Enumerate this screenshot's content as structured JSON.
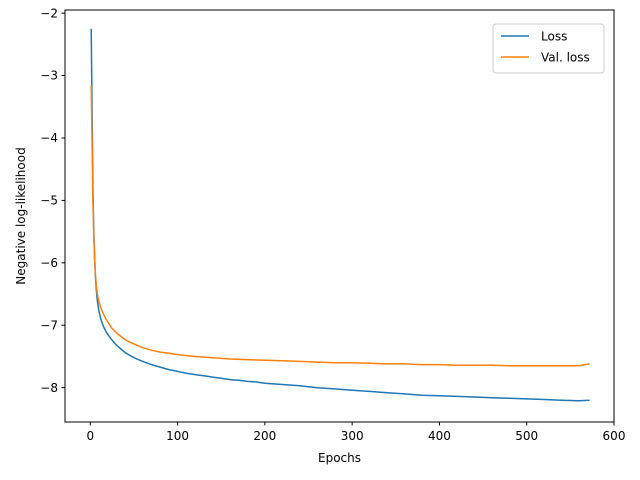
{
  "chart_data": {
    "type": "line",
    "title": "",
    "xlabel": "Epochs",
    "ylabel": "Negative log-likelihood",
    "xlim": [
      -29,
      600
    ],
    "ylim": [
      -8.55,
      -1.95
    ],
    "xticks": [
      0,
      100,
      200,
      300,
      400,
      500,
      600
    ],
    "xtick_labels": [
      "0",
      "100",
      "200",
      "300",
      "400",
      "500",
      "600"
    ],
    "yticks": [
      -8,
      -7,
      -6,
      -5,
      -4,
      -3,
      -2
    ],
    "ytick_labels": [
      "−8",
      "−7",
      "−6",
      "−5",
      "−4",
      "−3",
      "−2"
    ],
    "grid": false,
    "legend_position": "top-right",
    "series": [
      {
        "name": "Loss",
        "color": "#1f77b4",
        "points": [
          [
            1,
            -2.25
          ],
          [
            2,
            -3.6
          ],
          [
            3,
            -4.8
          ],
          [
            4,
            -5.5
          ],
          [
            5,
            -5.95
          ],
          [
            6,
            -6.25
          ],
          [
            7,
            -6.45
          ],
          [
            8,
            -6.6
          ],
          [
            10,
            -6.78
          ],
          [
            12,
            -6.9
          ],
          [
            15,
            -7.02
          ],
          [
            18,
            -7.1
          ],
          [
            20,
            -7.15
          ],
          [
            25,
            -7.24
          ],
          [
            30,
            -7.32
          ],
          [
            35,
            -7.38
          ],
          [
            40,
            -7.44
          ],
          [
            45,
            -7.48
          ],
          [
            50,
            -7.52
          ],
          [
            55,
            -7.55
          ],
          [
            60,
            -7.58
          ],
          [
            70,
            -7.63
          ],
          [
            80,
            -7.67
          ],
          [
            90,
            -7.71
          ],
          [
            100,
            -7.74
          ],
          [
            110,
            -7.77
          ],
          [
            120,
            -7.79
          ],
          [
            130,
            -7.81
          ],
          [
            140,
            -7.83
          ],
          [
            150,
            -7.85
          ],
          [
            160,
            -7.87
          ],
          [
            170,
            -7.88
          ],
          [
            180,
            -7.9
          ],
          [
            190,
            -7.91
          ],
          [
            200,
            -7.93
          ],
          [
            220,
            -7.95
          ],
          [
            240,
            -7.97
          ],
          [
            260,
            -8.0
          ],
          [
            280,
            -8.02
          ],
          [
            300,
            -8.04
          ],
          [
            320,
            -8.06
          ],
          [
            340,
            -8.08
          ],
          [
            360,
            -8.1
          ],
          [
            380,
            -8.12
          ],
          [
            400,
            -8.13
          ],
          [
            420,
            -8.14
          ],
          [
            440,
            -8.15
          ],
          [
            460,
            -8.16
          ],
          [
            480,
            -8.17
          ],
          [
            500,
            -8.18
          ],
          [
            520,
            -8.19
          ],
          [
            540,
            -8.2
          ],
          [
            560,
            -8.21
          ],
          [
            572,
            -8.2
          ]
        ]
      },
      {
        "name": "Val. loss",
        "color": "#ff7f0e",
        "points": [
          [
            1,
            -3.15
          ],
          [
            2,
            -4.1
          ],
          [
            3,
            -5.0
          ],
          [
            4,
            -5.6
          ],
          [
            5,
            -5.95
          ],
          [
            6,
            -6.2
          ],
          [
            7,
            -6.38
          ],
          [
            8,
            -6.5
          ],
          [
            10,
            -6.62
          ],
          [
            12,
            -6.72
          ],
          [
            15,
            -6.82
          ],
          [
            18,
            -6.9
          ],
          [
            20,
            -6.95
          ],
          [
            25,
            -7.05
          ],
          [
            30,
            -7.12
          ],
          [
            35,
            -7.18
          ],
          [
            40,
            -7.23
          ],
          [
            45,
            -7.27
          ],
          [
            50,
            -7.3
          ],
          [
            55,
            -7.33
          ],
          [
            60,
            -7.36
          ],
          [
            70,
            -7.4
          ],
          [
            80,
            -7.43
          ],
          [
            90,
            -7.45
          ],
          [
            100,
            -7.47
          ],
          [
            120,
            -7.5
          ],
          [
            140,
            -7.52
          ],
          [
            160,
            -7.54
          ],
          [
            180,
            -7.55
          ],
          [
            200,
            -7.56
          ],
          [
            220,
            -7.57
          ],
          [
            240,
            -7.58
          ],
          [
            260,
            -7.59
          ],
          [
            280,
            -7.6
          ],
          [
            300,
            -7.6
          ],
          [
            320,
            -7.61
          ],
          [
            340,
            -7.62
          ],
          [
            360,
            -7.62
          ],
          [
            380,
            -7.63
          ],
          [
            400,
            -7.63
          ],
          [
            420,
            -7.64
          ],
          [
            440,
            -7.64
          ],
          [
            460,
            -7.64
          ],
          [
            480,
            -7.65
          ],
          [
            500,
            -7.65
          ],
          [
            520,
            -7.65
          ],
          [
            540,
            -7.65
          ],
          [
            560,
            -7.65
          ],
          [
            572,
            -7.62
          ]
        ]
      }
    ]
  }
}
